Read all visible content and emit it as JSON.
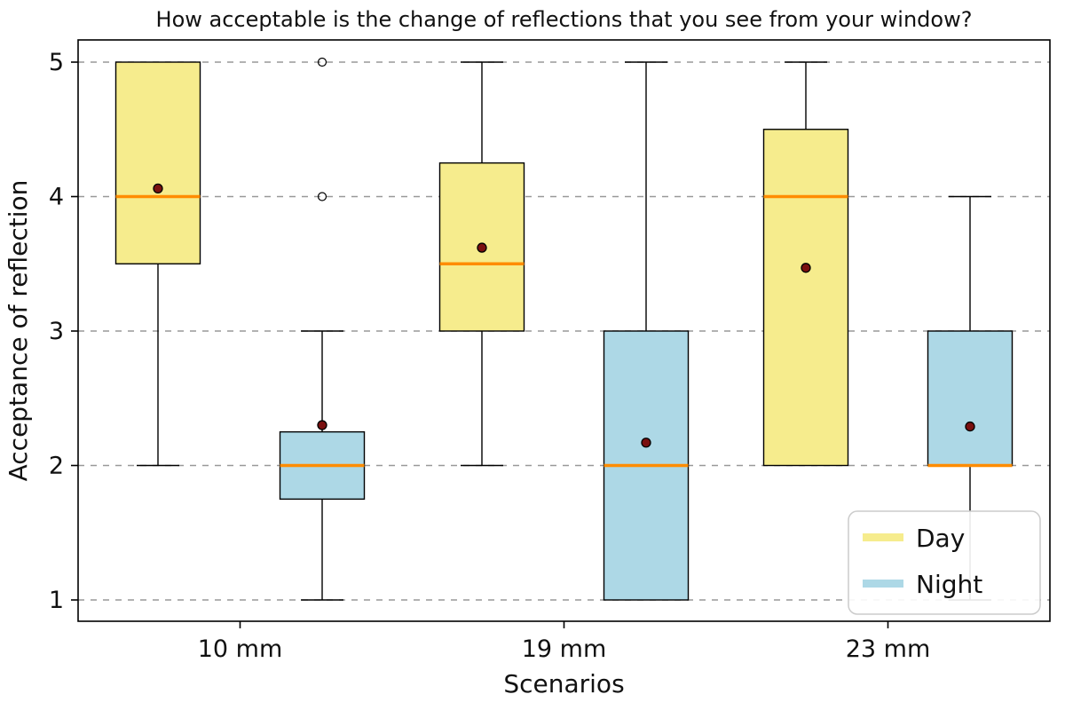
{
  "chart_data": {
    "type": "boxplot",
    "title": "How acceptable is the change of reflections that you see from your window?",
    "xlabel": "Scenarios",
    "ylabel": "Acceptance of reflection",
    "categories": [
      "10 mm",
      "19 mm",
      "23 mm"
    ],
    "yticks": [
      1,
      2,
      3,
      4,
      5
    ],
    "ylim": [
      1,
      5
    ],
    "grid": "horizontal-dashed",
    "legend": {
      "position": "lower-right",
      "entries": [
        {
          "label": "Day",
          "color": "#f6ec8d"
        },
        {
          "label": "Night",
          "color": "#add8e6"
        }
      ]
    },
    "colors": {
      "day": "#f6ec8d",
      "night": "#add8e6",
      "median": "#ff8c00",
      "mean": "#7a1010",
      "grid": "#999999",
      "axis": "#000000"
    },
    "boxes": [
      {
        "category": "10 mm",
        "series": "Day",
        "q1": 3.5,
        "median": 4.0,
        "q3": 5.0,
        "whisker_low": 2.0,
        "whisker_high": 5.0,
        "mean": 4.06,
        "outliers": []
      },
      {
        "category": "10 mm",
        "series": "Night",
        "q1": 1.75,
        "median": 2.0,
        "q3": 2.25,
        "whisker_low": 1.0,
        "whisker_high": 3.0,
        "mean": 2.3,
        "outliers": [
          4.0,
          5.0
        ]
      },
      {
        "category": "19 mm",
        "series": "Day",
        "q1": 3.0,
        "median": 3.5,
        "q3": 4.25,
        "whisker_low": 2.0,
        "whisker_high": 5.0,
        "mean": 3.62,
        "outliers": []
      },
      {
        "category": "19 mm",
        "series": "Night",
        "q1": 1.0,
        "median": 2.0,
        "q3": 3.0,
        "whisker_low": 1.0,
        "whisker_high": 5.0,
        "mean": 2.17,
        "outliers": []
      },
      {
        "category": "23 mm",
        "series": "Day",
        "q1": 2.0,
        "median": 4.0,
        "q3": 4.5,
        "whisker_low": 2.0,
        "whisker_high": 5.0,
        "mean": 3.47,
        "outliers": []
      },
      {
        "category": "23 mm",
        "series": "Night",
        "q1": 2.0,
        "median": 2.0,
        "q3": 3.0,
        "whisker_low": 1.0,
        "whisker_high": 4.0,
        "mean": 2.29,
        "outliers": []
      }
    ]
  }
}
